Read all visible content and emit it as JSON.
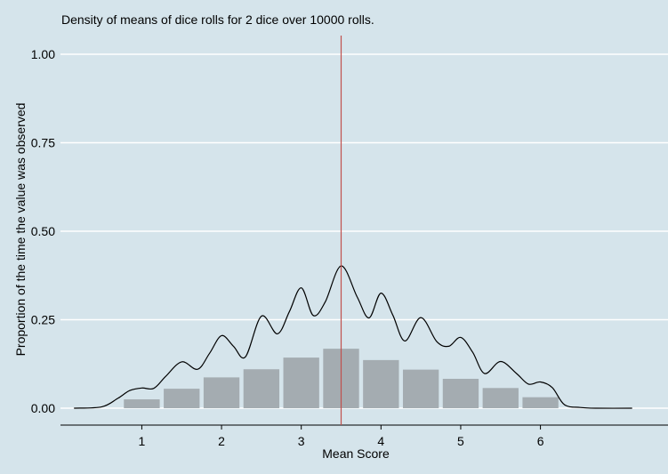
{
  "chart_data": {
    "type": "bar",
    "title": "Density of means of dice rolls for 2 dice over 10000 rolls.",
    "xlabel": "Mean Score",
    "ylabel": "Proportion of the time the value was observed",
    "x_ticks": [
      1,
      2,
      3,
      4,
      5,
      6
    ],
    "y_ticks": [
      "0.00",
      "0.25",
      "0.50",
      "0.75",
      "1.00"
    ],
    "xlim": [
      -0.02,
      7.6
    ],
    "ylim": [
      0,
      1.05
    ],
    "grid": true,
    "bars": {
      "x": [
        1.0,
        1.5,
        2.0,
        2.5,
        3.0,
        3.5,
        4.0,
        4.5,
        5.0,
        5.5,
        6.0
      ],
      "values": [
        0.025,
        0.055,
        0.087,
        0.11,
        0.143,
        0.168,
        0.136,
        0.109,
        0.083,
        0.057,
        0.031
      ],
      "color": "#a4acb1"
    },
    "density": {
      "x": [
        0.15,
        0.5,
        0.7,
        0.85,
        1.0,
        1.15,
        1.3,
        1.5,
        1.7,
        1.85,
        2.0,
        2.15,
        2.3,
        2.5,
        2.7,
        2.85,
        3.0,
        3.15,
        3.3,
        3.5,
        3.7,
        3.85,
        4.0,
        4.15,
        4.3,
        4.5,
        4.7,
        4.85,
        5.0,
        5.15,
        5.3,
        5.5,
        5.7,
        5.85,
        6.0,
        6.15,
        6.3,
        6.5,
        6.7,
        7.15
      ],
      "y": [
        0.0,
        0.004,
        0.028,
        0.05,
        0.057,
        0.056,
        0.09,
        0.131,
        0.11,
        0.155,
        0.205,
        0.175,
        0.145,
        0.26,
        0.21,
        0.272,
        0.34,
        0.262,
        0.3,
        0.402,
        0.315,
        0.255,
        0.325,
        0.262,
        0.19,
        0.256,
        0.188,
        0.175,
        0.2,
        0.158,
        0.098,
        0.132,
        0.098,
        0.068,
        0.074,
        0.058,
        0.01,
        0.002,
        0.0,
        0.0
      ],
      "color": "#000000"
    },
    "reference_line": {
      "x": 3.5,
      "color": "#c0504d"
    },
    "colors": {
      "background": "#d5e4eb",
      "grid": "#ffffff",
      "axis": "#000000"
    }
  }
}
